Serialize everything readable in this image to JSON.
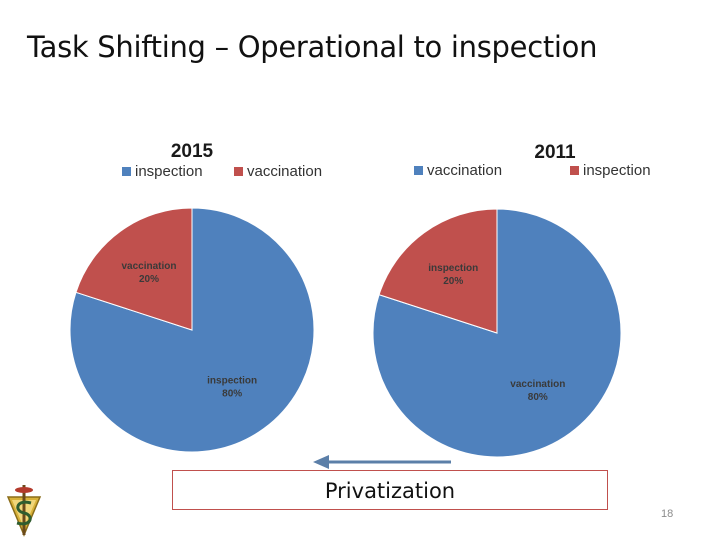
{
  "slide": {
    "title": "Task Shifting – Operational to inspection",
    "privatization_label": "Privatization",
    "page_number": "18"
  },
  "colors": {
    "blue": "#4f81bd",
    "red": "#c0504d",
    "arrow": "#5b7fa8",
    "box_border": "#c0504d"
  },
  "chart_data": [
    {
      "type": "pie",
      "title": "2015",
      "legend": [
        "inspection",
        "vaccination"
      ],
      "legend_placement": "top",
      "slices": [
        {
          "label": "inspection",
          "value": 80,
          "display": "80%",
          "color": "#4f81bd"
        },
        {
          "label": "vaccination",
          "value": 20,
          "display": "20%",
          "color": "#c0504d"
        }
      ]
    },
    {
      "type": "pie",
      "title": "2011",
      "legend": [
        "vaccination",
        "inspection"
      ],
      "legend_placement": "top",
      "slices": [
        {
          "label": "vaccination",
          "value": 80,
          "display": "80%",
          "color": "#4f81bd"
        },
        {
          "label": "inspection",
          "value": 20,
          "display": "20%",
          "color": "#c0504d"
        }
      ]
    }
  ]
}
